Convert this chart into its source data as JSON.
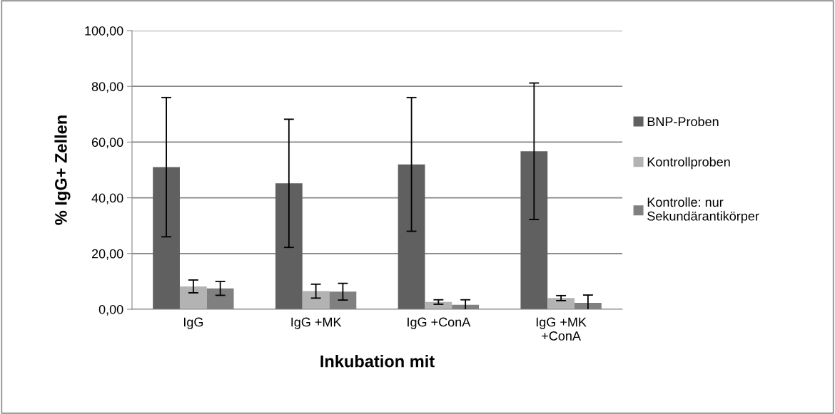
{
  "chart_data": {
    "type": "bar",
    "xlabel": "Inkubation mit",
    "ylabel": "% IgG+ Zellen",
    "categories": [
      "IgG",
      "IgG +MK",
      "IgG +ConA",
      "IgG +MK\n+ConA"
    ],
    "series": [
      {
        "name": "BNP-Proben",
        "color": "#606060",
        "values": [
          51.0,
          45.2,
          52.0,
          56.7
        ],
        "errors": [
          25.0,
          23.0,
          24.0,
          24.5
        ]
      },
      {
        "name": "Kontrollproben",
        "color": "#b3b3b3",
        "values": [
          8.2,
          6.5,
          2.6,
          4.0
        ],
        "errors": [
          2.3,
          2.5,
          0.8,
          0.9
        ]
      },
      {
        "name": "Kontrolle: nur\nSekundärantikörper",
        "color": "#808080",
        "values": [
          7.5,
          6.3,
          1.6,
          2.3
        ],
        "errors": [
          2.5,
          3.0,
          1.8,
          2.8
        ]
      }
    ],
    "ylim": [
      0,
      100
    ],
    "yticks": [
      {
        "value": 0,
        "label": "0,00"
      },
      {
        "value": 20,
        "label": "20,00"
      },
      {
        "value": 40,
        "label": "40,00"
      },
      {
        "value": 60,
        "label": "60,00"
      },
      {
        "value": 80,
        "label": "80,00"
      },
      {
        "value": 100,
        "label": "100,00"
      }
    ],
    "grid": "y",
    "legend": "right"
  }
}
